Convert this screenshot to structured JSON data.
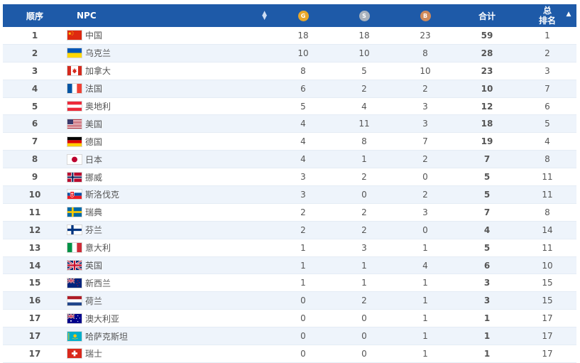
{
  "header": {
    "rank": "顺序",
    "npc": "NPC",
    "gold": "G",
    "silver": "S",
    "bronze": "B",
    "total": "合计",
    "total_rank_line1": "总",
    "total_rank_line2": "排名"
  },
  "colors": {
    "header_bg": "#1e5aa8",
    "gold": "#e8a72a",
    "silver": "#a9b2bd",
    "bronze": "#d08a5b"
  },
  "rows": [
    {
      "rank": "1",
      "npc": "中国",
      "flag": "china",
      "gold": "18",
      "silver": "18",
      "bronze": "23",
      "total": "59",
      "total_rank": "1"
    },
    {
      "rank": "2",
      "npc": "乌克兰",
      "flag": "ukraine",
      "gold": "10",
      "silver": "10",
      "bronze": "8",
      "total": "28",
      "total_rank": "2"
    },
    {
      "rank": "3",
      "npc": "加拿大",
      "flag": "canada",
      "gold": "8",
      "silver": "5",
      "bronze": "10",
      "total": "23",
      "total_rank": "3"
    },
    {
      "rank": "4",
      "npc": "法国",
      "flag": "france",
      "gold": "6",
      "silver": "2",
      "bronze": "2",
      "total": "10",
      "total_rank": "7"
    },
    {
      "rank": "5",
      "npc": "奥地利",
      "flag": "austria",
      "gold": "5",
      "silver": "4",
      "bronze": "3",
      "total": "12",
      "total_rank": "6"
    },
    {
      "rank": "6",
      "npc": "美国",
      "flag": "usa",
      "gold": "4",
      "silver": "11",
      "bronze": "3",
      "total": "18",
      "total_rank": "5"
    },
    {
      "rank": "7",
      "npc": "德国",
      "flag": "germany",
      "gold": "4",
      "silver": "8",
      "bronze": "7",
      "total": "19",
      "total_rank": "4"
    },
    {
      "rank": "8",
      "npc": "日本",
      "flag": "japan",
      "gold": "4",
      "silver": "1",
      "bronze": "2",
      "total": "7",
      "total_rank": "8"
    },
    {
      "rank": "9",
      "npc": "挪威",
      "flag": "norway",
      "gold": "3",
      "silver": "2",
      "bronze": "0",
      "total": "5",
      "total_rank": "11"
    },
    {
      "rank": "10",
      "npc": "斯洛伐克",
      "flag": "slovakia",
      "gold": "3",
      "silver": "0",
      "bronze": "2",
      "total": "5",
      "total_rank": "11"
    },
    {
      "rank": "11",
      "npc": "瑞典",
      "flag": "sweden",
      "gold": "2",
      "silver": "2",
      "bronze": "3",
      "total": "7",
      "total_rank": "8"
    },
    {
      "rank": "12",
      "npc": "芬兰",
      "flag": "finland",
      "gold": "2",
      "silver": "2",
      "bronze": "0",
      "total": "4",
      "total_rank": "14"
    },
    {
      "rank": "13",
      "npc": "意大利",
      "flag": "italy",
      "gold": "1",
      "silver": "3",
      "bronze": "1",
      "total": "5",
      "total_rank": "11"
    },
    {
      "rank": "14",
      "npc": "英国",
      "flag": "uk",
      "gold": "1",
      "silver": "1",
      "bronze": "4",
      "total": "6",
      "total_rank": "10"
    },
    {
      "rank": "15",
      "npc": "新西兰",
      "flag": "newzealand",
      "gold": "1",
      "silver": "1",
      "bronze": "1",
      "total": "3",
      "total_rank": "15"
    },
    {
      "rank": "16",
      "npc": "荷兰",
      "flag": "netherlands",
      "gold": "0",
      "silver": "2",
      "bronze": "1",
      "total": "3",
      "total_rank": "15"
    },
    {
      "rank": "17",
      "npc": "澳大利亚",
      "flag": "australia",
      "gold": "0",
      "silver": "0",
      "bronze": "1",
      "total": "1",
      "total_rank": "17"
    },
    {
      "rank": "17",
      "npc": "哈萨克斯坦",
      "flag": "kazakhstan",
      "gold": "0",
      "silver": "0",
      "bronze": "1",
      "total": "1",
      "total_rank": "17"
    },
    {
      "rank": "17",
      "npc": "瑞士",
      "flag": "switzerland",
      "gold": "0",
      "silver": "0",
      "bronze": "1",
      "total": "1",
      "total_rank": "17"
    }
  ]
}
